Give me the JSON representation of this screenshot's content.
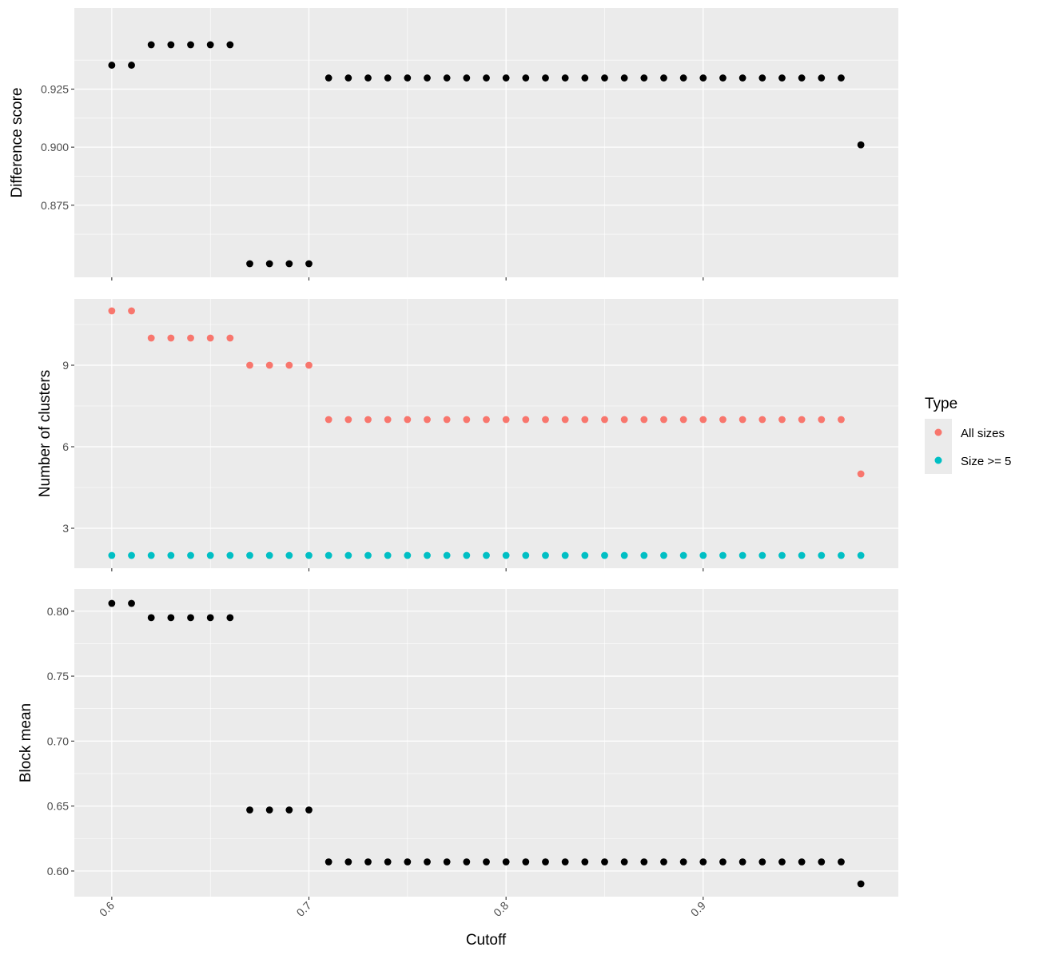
{
  "chart_data": {
    "type": "scatter",
    "x": [
      0.6,
      0.61,
      0.62,
      0.63,
      0.64,
      0.65,
      0.66,
      0.67,
      0.68,
      0.69,
      0.7,
      0.71,
      0.72,
      0.73,
      0.74,
      0.75,
      0.76,
      0.77,
      0.78,
      0.79,
      0.8,
      0.81,
      0.82,
      0.83,
      0.84,
      0.85,
      0.86,
      0.87,
      0.88,
      0.89,
      0.9,
      0.91,
      0.92,
      0.93,
      0.94,
      0.95,
      0.96,
      0.97,
      0.98
    ],
    "xlabel": "Cutoff",
    "xlim": [
      0.581,
      0.999
    ],
    "xticks": [
      0.6,
      0.7,
      0.8,
      0.9
    ],
    "xtick_labels": [
      "0.6",
      "0.7",
      "0.8",
      "0.9"
    ],
    "grid": true,
    "legend_placement": "right",
    "panels": [
      {
        "ylabel": "Difference score",
        "ylim": [
          0.8498,
          0.9441
        ],
        "yticks": [
          0.875,
          0.9,
          0.925
        ],
        "ytick_labels": [
          "0.875",
          "0.900",
          "0.925"
        ],
        "series": [
          {
            "color": "#000000",
            "values": [
              0.9353,
              0.9353,
              0.9441,
              0.9441,
              0.9441,
              0.9441,
              0.9441,
              0.8498,
              0.8498,
              0.8498,
              0.8498,
              0.9298,
              0.9298,
              0.9298,
              0.9298,
              0.9298,
              0.9298,
              0.9298,
              0.9298,
              0.9298,
              0.9298,
              0.9298,
              0.9298,
              0.9298,
              0.9298,
              0.9298,
              0.9298,
              0.9298,
              0.9298,
              0.9298,
              0.9298,
              0.9298,
              0.9298,
              0.9298,
              0.9298,
              0.9298,
              0.9298,
              0.9298,
              0.901
            ]
          }
        ]
      },
      {
        "ylabel": "Number of clusters",
        "ylim": [
          2,
          11
        ],
        "yticks": [
          3,
          6,
          9
        ],
        "ytick_labels": [
          "3",
          "6",
          "9"
        ],
        "series": [
          {
            "name": "All sizes",
            "color": "#F8766D",
            "values": [
              11,
              11,
              10,
              10,
              10,
              10,
              10,
              9,
              9,
              9,
              9,
              7,
              7,
              7,
              7,
              7,
              7,
              7,
              7,
              7,
              7,
              7,
              7,
              7,
              7,
              7,
              7,
              7,
              7,
              7,
              7,
              7,
              7,
              7,
              7,
              7,
              7,
              7,
              5
            ]
          },
          {
            "name": "Size >= 5",
            "color": "#00BFC4",
            "values": [
              2,
              2,
              2,
              2,
              2,
              2,
              2,
              2,
              2,
              2,
              2,
              2,
              2,
              2,
              2,
              2,
              2,
              2,
              2,
              2,
              2,
              2,
              2,
              2,
              2,
              2,
              2,
              2,
              2,
              2,
              2,
              2,
              2,
              2,
              2,
              2,
              2,
              2,
              2
            ]
          }
        ]
      },
      {
        "ylabel": "Block mean",
        "ylim": [
          0.5901,
          0.806
        ],
        "yticks": [
          0.6,
          0.65,
          0.7,
          0.75,
          0.8
        ],
        "ytick_labels": [
          "0.60",
          "0.65",
          "0.70",
          "0.75",
          "0.80"
        ],
        "series": [
          {
            "color": "#000000",
            "values": [
              0.806,
              0.806,
              0.795,
              0.795,
              0.795,
              0.795,
              0.795,
              0.647,
              0.647,
              0.647,
              0.647,
              0.607,
              0.607,
              0.607,
              0.607,
              0.607,
              0.607,
              0.607,
              0.607,
              0.607,
              0.607,
              0.607,
              0.607,
              0.607,
              0.607,
              0.607,
              0.607,
              0.607,
              0.607,
              0.607,
              0.607,
              0.607,
              0.607,
              0.607,
              0.607,
              0.607,
              0.607,
              0.607,
              0.5901
            ]
          }
        ]
      }
    ],
    "legend": {
      "title": "Type",
      "entries": [
        {
          "label": "All sizes",
          "color": "#F8766D"
        },
        {
          "label": "Size >= 5",
          "color": "#00BFC4"
        }
      ]
    }
  }
}
